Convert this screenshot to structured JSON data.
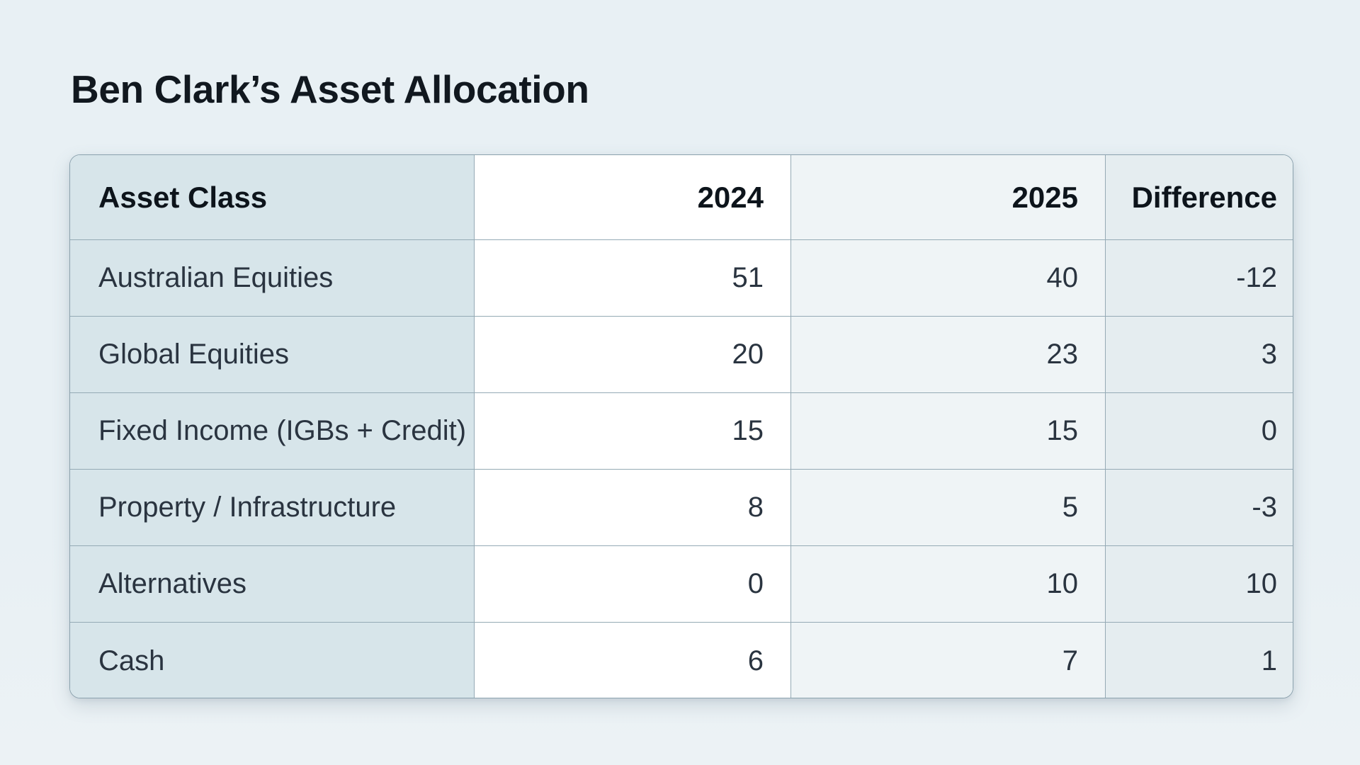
{
  "page": {
    "title": "Ben Clark’s Asset Allocation"
  },
  "table": {
    "columns": [
      "Asset Class",
      "2024",
      "2025",
      "Difference"
    ],
    "rows": [
      {
        "asset": "Australian Equities",
        "y2024": "51",
        "y2025": "40",
        "diff": "-12"
      },
      {
        "asset": "Global Equities",
        "y2024": "20",
        "y2025": "23",
        "diff": "3"
      },
      {
        "asset": "Fixed Income (IGBs + Credit)",
        "y2024": "15",
        "y2025": "15",
        "diff": "0"
      },
      {
        "asset": "Property / Infrastructure",
        "y2024": "8",
        "y2025": "5",
        "diff": "-3"
      },
      {
        "asset": "Alternatives",
        "y2024": "0",
        "y2025": "10",
        "diff": "10"
      },
      {
        "asset": "Cash",
        "y2024": "6",
        "y2025": "7",
        "diff": "1"
      }
    ]
  },
  "colors": {
    "page_bg": "#e8f0f4",
    "asset_column_bg": "#d7e5ea",
    "col_2024_bg": "#ffffff",
    "col_2025_bg": "#eff4f6",
    "col_difference_bg": "#e5edf0",
    "grid_border": "#95aab5",
    "heading_text": "#11181f",
    "body_text": "#2a3440"
  },
  "chart_data": {
    "type": "table",
    "title": "Ben Clark’s Asset Allocation",
    "columns": [
      "Asset Class",
      "2024",
      "2025",
      "Difference"
    ],
    "categories": [
      "Australian Equities",
      "Global Equities",
      "Fixed Income (IGBs + Credit)",
      "Property / Infrastructure",
      "Alternatives",
      "Cash"
    ],
    "series": [
      {
        "name": "2024",
        "values": [
          51,
          20,
          15,
          8,
          0,
          6
        ]
      },
      {
        "name": "2025",
        "values": [
          40,
          23,
          15,
          5,
          10,
          7
        ]
      },
      {
        "name": "Difference",
        "values": [
          -12,
          3,
          0,
          -3,
          10,
          1
        ]
      }
    ]
  }
}
